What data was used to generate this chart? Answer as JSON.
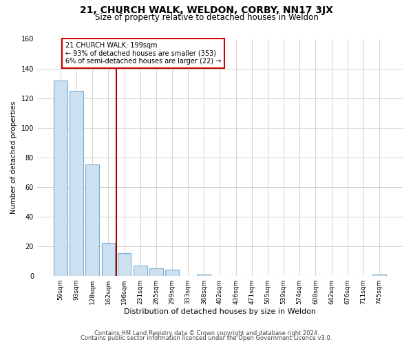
{
  "title": "21, CHURCH WALK, WELDON, CORBY, NN17 3JX",
  "subtitle": "Size of property relative to detached houses in Weldon",
  "xlabel": "Distribution of detached houses by size in Weldon",
  "ylabel": "Number of detached properties",
  "bar_labels": [
    "59sqm",
    "93sqm",
    "128sqm",
    "162sqm",
    "196sqm",
    "231sqm",
    "265sqm",
    "299sqm",
    "333sqm",
    "368sqm",
    "402sqm",
    "436sqm",
    "471sqm",
    "505sqm",
    "539sqm",
    "574sqm",
    "608sqm",
    "642sqm",
    "676sqm",
    "711sqm",
    "745sqm"
  ],
  "bar_values": [
    132,
    125,
    75,
    22,
    15,
    7,
    5,
    4,
    0,
    1,
    0,
    0,
    0,
    0,
    0,
    0,
    0,
    0,
    0,
    0,
    1
  ],
  "bar_color": "#cde0f0",
  "bar_edge_color": "#7aaed0",
  "vline_x": 3.5,
  "vline_color": "#aa0000",
  "annotation_text": "21 CHURCH WALK: 199sqm\n← 93% of detached houses are smaller (353)\n6% of semi-detached houses are larger (22) →",
  "annotation_box_color": "#ffffff",
  "annotation_box_edge": "#cc0000",
  "ylim": [
    0,
    160
  ],
  "yticks": [
    0,
    20,
    40,
    60,
    80,
    100,
    120,
    140,
    160
  ],
  "footer1": "Contains HM Land Registry data © Crown copyright and database right 2024.",
  "footer2": "Contains public sector information licensed under the Open Government Licence v3.0.",
  "bg_color": "#ffffff",
  "grid_color": "#cccccc"
}
